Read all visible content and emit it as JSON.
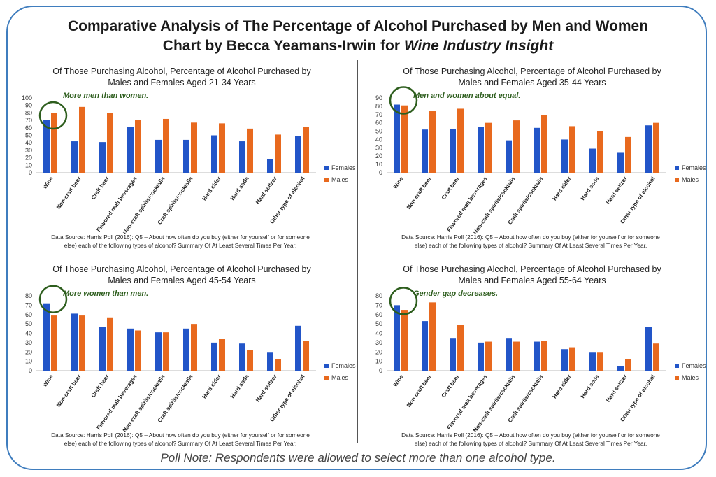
{
  "header": {
    "title_line1": "Comparative Analysis of The Percentage of Alcohol Purchased by Men and Women",
    "title_line2_prefix": "Chart by Becca Yeamans-Irwin for ",
    "title_line2_italic": "Wine Industry Insight"
  },
  "footer": {
    "poll_note": "Poll Note:  Respondents were allowed to select more than one alcohol type."
  },
  "colors": {
    "females": "#2255c8",
    "males": "#e8691e",
    "frame": "#3f7dbe",
    "annotation": "#2e5e1e"
  },
  "chart_data": [
    {
      "type": "bar",
      "title_line1": "Of Those Purchasing Alcohol, Percentage of Alcohol Purchased by",
      "title_line2": "Males and Females Aged 21-34 Years",
      "annotation": "More men than women.",
      "categories": [
        "Wine",
        "Non-craft beer",
        "Craft beer",
        "Flavored malt beverages",
        "Non-craft spirits/cocktails",
        "Craft spirits/cocktails",
        "Hard cider",
        "Hard soda",
        "Hard seltzer",
        "Other type of alcohol"
      ],
      "series": [
        {
          "name": "Females",
          "values": [
            71,
            42,
            41,
            61,
            44,
            44,
            50,
            42,
            18,
            49
          ]
        },
        {
          "name": "Males",
          "values": [
            80,
            88,
            80,
            71,
            72,
            67,
            66,
            59,
            51,
            61
          ]
        }
      ],
      "ylim": [
        0,
        100
      ],
      "yticks": [
        0,
        10,
        20,
        30,
        40,
        50,
        60,
        70,
        80,
        90,
        100
      ],
      "legend": "right",
      "source_line1": "Data Source: Harris Poll (2016): Q5 – About how often do you buy (either for yourself or for someone",
      "source_line2": "else) each of the following types of alcohol? Summary Of At Least Several Times Per Year."
    },
    {
      "type": "bar",
      "title_line1": "Of Those Purchasing Alcohol, Percentage of Alcohol Purchased by",
      "title_line2": "Males and Females Aged 35-44 Years",
      "annotation": "Men and women about equal.",
      "categories": [
        "Wine",
        "Non-craft beer",
        "Craft beer",
        "Flavored malt beverages",
        "Non-craft spirits/cocktails",
        "Craft spirits/cocktails",
        "Hard cider",
        "Hard soda",
        "Hard seltzer",
        "Other type of alcohol"
      ],
      "series": [
        {
          "name": "Females",
          "values": [
            82,
            52,
            53,
            55,
            39,
            54,
            40,
            29,
            24,
            57
          ]
        },
        {
          "name": "Males",
          "values": [
            81,
            74,
            77,
            60,
            63,
            69,
            56,
            50,
            43,
            60
          ]
        }
      ],
      "ylim": [
        0,
        90
      ],
      "yticks": [
        0,
        10,
        20,
        30,
        40,
        50,
        60,
        70,
        80,
        90
      ],
      "legend": "right",
      "source_line1": "Data Source: Harris Poll (2016): Q5 – About how often do you buy (either for yourself or for someone",
      "source_line2": "else) each of the following types of alcohol? Summary Of At Least Several Times Per Year."
    },
    {
      "type": "bar",
      "title_line1": "Of Those Purchasing Alcohol, Percentage of Alcohol Purchased by",
      "title_line2": "Males and Females Aged 45-54 Years",
      "annotation": "More women than men.",
      "categories": [
        "Wine",
        "Non-craft beer",
        "Craft beer",
        "Flavored malt beverages",
        "Non-craft spirits/cocktails",
        "Craft spirits/cocktails",
        "Hard cider",
        "Hard soda",
        "Hard seltzer",
        "Other type of alcohol"
      ],
      "series": [
        {
          "name": "Females",
          "values": [
            72,
            61,
            47,
            45,
            41,
            45,
            30,
            29,
            20,
            48
          ]
        },
        {
          "name": "Males",
          "values": [
            59,
            59,
            57,
            43,
            41,
            50,
            34,
            22,
            12,
            32
          ]
        }
      ],
      "ylim": [
        0,
        80
      ],
      "yticks": [
        0,
        10,
        20,
        30,
        40,
        50,
        60,
        70,
        80
      ],
      "legend": "right",
      "source_line1": "Data Source: Harris Poll (2016): Q5 – About how often do you buy (either for yourself or for someone",
      "source_line2": "else) each of the following types of alcohol? Summary Of At Least Several Times Per Year."
    },
    {
      "type": "bar",
      "title_line1": "Of Those Purchasing Alcohol, Percentage of Alcohol Purchased by",
      "title_line2": "Males and Females Aged 55-64 Years",
      "annotation": "Gender gap decreases.",
      "categories": [
        "Wine",
        "Non-craft beer",
        "Craft beer",
        "Flavored malt beverages",
        "Non-craft spirits/cocktails",
        "Craft spirits/cocktails",
        "Hard cider",
        "Hard soda",
        "Hard seltzer",
        "Other type of alcohol"
      ],
      "series": [
        {
          "name": "Females",
          "values": [
            70,
            53,
            35,
            30,
            35,
            31,
            23,
            20,
            5,
            47
          ]
        },
        {
          "name": "Males",
          "values": [
            65,
            73,
            49,
            31,
            31,
            32,
            25,
            20,
            12,
            29
          ]
        }
      ],
      "ylim": [
        0,
        80
      ],
      "yticks": [
        0,
        10,
        20,
        30,
        40,
        50,
        60,
        70,
        80
      ],
      "legend": "right",
      "source_line1": "Data Source: Harris Poll (2016): Q5 – About how often do you buy (either for yourself or for someone",
      "source_line2": "else) each of the following types of alcohol? Summary Of At Least Several Times Per Year."
    }
  ]
}
